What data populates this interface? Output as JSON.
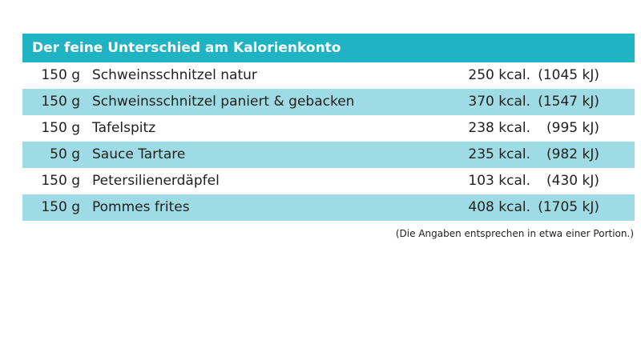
{
  "table": {
    "title": "Der feine Unterschied am Kalorienkonto",
    "rows": [
      {
        "amount": "150 g",
        "food": "Schweinsschnitzel natur",
        "kcal": "250 kcal.",
        "kj": "(1045 kJ)"
      },
      {
        "amount": "150 g",
        "food": "Schweinsschnitzel paniert & gebacken",
        "kcal": "370 kcal.",
        "kj": "(1547 kJ)"
      },
      {
        "amount": "150 g",
        "food": "Tafelspitz",
        "kcal": "238 kcal.",
        "kj": "(995 kJ)"
      },
      {
        "amount": "50 g",
        "food": "Sauce Tartare",
        "kcal": "235 kcal.",
        "kj": "(982 kJ)"
      },
      {
        "amount": "150 g",
        "food": "Petersilienerdäpfel",
        "kcal": "103 kcal.",
        "kj": "(430 kJ)"
      },
      {
        "amount": "150 g",
        "food": "Pommes frites",
        "kcal": "408 kcal.",
        "kj": "(1705 kJ)"
      }
    ],
    "footnote": "(Die Angaben entsprechen in etwa einer Portion.)"
  },
  "colors": {
    "header_background": "#1fb3c4",
    "row_highlight": "#9fdbe4",
    "text": "#1f1f1f"
  }
}
